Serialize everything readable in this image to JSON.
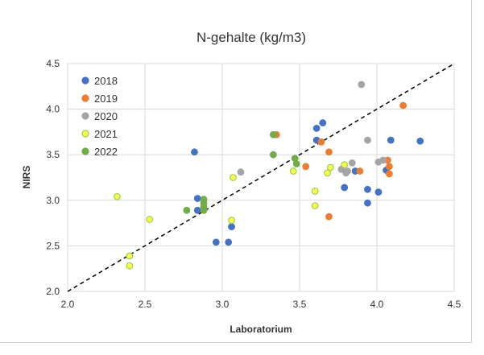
{
  "chart_data": {
    "type": "scatter",
    "title": "N-gehalte (kg/m3)",
    "xlabel": "Laboratorium",
    "ylabel": "NIRS",
    "xlim": [
      2.0,
      4.5
    ],
    "ylim": [
      2.0,
      4.5
    ],
    "xticks": [
      "2.0",
      "2.5",
      "3.0",
      "3.5",
      "4.0",
      "4.5"
    ],
    "yticks": [
      "2.0",
      "2.5",
      "3.0",
      "3.5",
      "4.0",
      "4.5"
    ],
    "grid": true,
    "legend_position": "top-left",
    "reference_line": {
      "style": "dashed",
      "from": [
        2.0,
        2.0
      ],
      "to": [
        4.5,
        4.5
      ]
    },
    "series": [
      {
        "name": "2018",
        "color": "#4472c4",
        "stroke": "#4472c4",
        "points": [
          [
            2.82,
            3.53
          ],
          [
            2.84,
            3.02
          ],
          [
            2.84,
            2.89
          ],
          [
            2.96,
            2.54
          ],
          [
            3.04,
            2.54
          ],
          [
            3.06,
            2.71
          ],
          [
            3.61,
            3.79
          ],
          [
            3.61,
            3.66
          ],
          [
            3.65,
            3.85
          ],
          [
            3.79,
            3.14
          ],
          [
            3.86,
            3.32
          ],
          [
            3.94,
            3.12
          ],
          [
            3.94,
            2.97
          ],
          [
            4.01,
            3.09
          ],
          [
            4.06,
            3.33
          ],
          [
            4.09,
            3.66
          ],
          [
            4.28,
            3.65
          ]
        ]
      },
      {
        "name": "2019",
        "color": "#ed7d31",
        "stroke": "#ed7d31",
        "points": [
          [
            3.35,
            3.72
          ],
          [
            3.54,
            3.37
          ],
          [
            3.64,
            3.64
          ],
          [
            3.69,
            3.53
          ],
          [
            3.69,
            2.82
          ],
          [
            3.89,
            3.32
          ],
          [
            4.07,
            3.44
          ],
          [
            4.08,
            3.37
          ],
          [
            4.08,
            3.29
          ],
          [
            4.17,
            4.04
          ]
        ]
      },
      {
        "name": "2020",
        "color": "#a5a5a5",
        "stroke": "#a5a5a5",
        "points": [
          [
            3.12,
            3.31
          ],
          [
            3.77,
            3.34
          ],
          [
            3.8,
            3.3
          ],
          [
            3.81,
            3.32
          ],
          [
            3.84,
            3.41
          ],
          [
            3.9,
            4.27
          ],
          [
            3.94,
            3.66
          ],
          [
            4.01,
            3.42
          ],
          [
            4.04,
            3.44
          ]
        ]
      },
      {
        "name": "2021",
        "color": "#ffff4d",
        "stroke": "#92d050",
        "points": [
          [
            2.32,
            3.04
          ],
          [
            2.4,
            2.39
          ],
          [
            2.4,
            2.28
          ],
          [
            2.53,
            2.79
          ],
          [
            3.06,
            2.78
          ],
          [
            3.07,
            3.25
          ],
          [
            3.46,
            3.32
          ],
          [
            3.6,
            3.1
          ],
          [
            3.6,
            2.94
          ],
          [
            3.68,
            3.3
          ],
          [
            3.7,
            3.36
          ],
          [
            3.79,
            3.39
          ]
        ]
      },
      {
        "name": "2022",
        "color": "#70ad47",
        "stroke": "#70ad47",
        "points": [
          [
            2.77,
            2.89
          ],
          [
            2.88,
            3.01
          ],
          [
            2.88,
            2.97
          ],
          [
            2.88,
            2.93
          ],
          [
            2.88,
            2.89
          ],
          [
            3.33,
            3.72
          ],
          [
            3.33,
            3.5
          ],
          [
            3.47,
            3.46
          ],
          [
            3.48,
            3.4
          ]
        ]
      }
    ]
  }
}
